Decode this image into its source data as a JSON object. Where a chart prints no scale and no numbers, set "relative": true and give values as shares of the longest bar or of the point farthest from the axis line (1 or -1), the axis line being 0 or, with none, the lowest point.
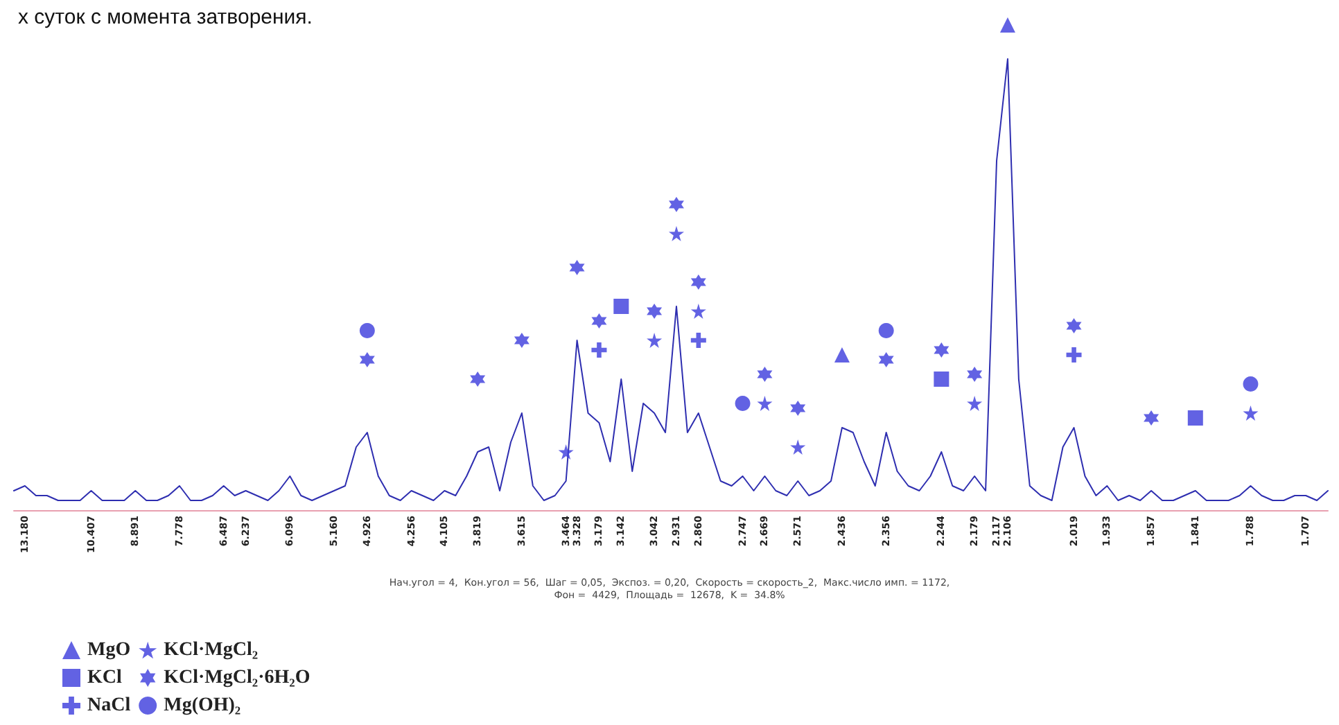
{
  "chart_data": {
    "type": "line",
    "title": "х суток с момента затворения.",
    "relative": true,
    "legend": "bottom left",
    "grid": false,
    "categories": [
      null,
      "13.180",
      null,
      null,
      null,
      null,
      null,
      "10.407",
      null,
      null,
      null,
      "8.891",
      null,
      null,
      null,
      "7.778",
      null,
      null,
      null,
      "6.487",
      null,
      "6.237",
      null,
      null,
      null,
      "6.096",
      null,
      null,
      null,
      "5.160",
      null,
      null,
      "4.926",
      null,
      null,
      null,
      "4.256",
      null,
      null,
      "4.105",
      null,
      null,
      "3.819",
      null,
      null,
      null,
      "3.615",
      null,
      null,
      null,
      "3.464",
      "3.328",
      null,
      "3.179",
      null,
      "3.142",
      null,
      null,
      "3.042",
      null,
      "2.931",
      null,
      "2.860",
      null,
      null,
      null,
      "2.747",
      null,
      "2.669",
      null,
      null,
      "2.571",
      null,
      null,
      null,
      "2.436",
      null,
      null,
      null,
      "2.356",
      null,
      null,
      null,
      null,
      "2.244",
      null,
      null,
      "2.179",
      null,
      "2.117",
      "2.106",
      null,
      null,
      null,
      null,
      null,
      "2.019",
      null,
      null,
      "1.933",
      null,
      null,
      null,
      "1.857",
      null,
      null,
      null,
      "1.841",
      null,
      null,
      null,
      null,
      "1.788",
      null,
      null,
      null,
      null,
      "1.707",
      null,
      null
    ],
    "annotations": [
      "Нач.угол = 4,  Кон.угол = 56,  Шаг = 0,05,  Экспоз. = 0,20,  Скорость = скорость_2,  Макс.число имп. = 1172,",
      "Фон =  4429,  Площадь =  12678,  K =  34.8%"
    ],
    "series": [
      {
        "color": "#2e2eb0",
        "marker": "none",
        "values": [
          0.04,
          0.05,
          0.03,
          0.03,
          0.02,
          0.02,
          0.02,
          0.04,
          0.02,
          0.02,
          0.02,
          0.04,
          0.02,
          0.02,
          0.03,
          0.05,
          0.02,
          0.02,
          0.03,
          0.05,
          0.03,
          0.04,
          0.03,
          0.02,
          0.04,
          0.07,
          0.03,
          0.02,
          0.03,
          0.04,
          0.05,
          0.13,
          0.16,
          0.07,
          0.03,
          0.02,
          0.04,
          0.03,
          0.02,
          0.04,
          0.03,
          0.07,
          0.12,
          0.13,
          0.04,
          0.14,
          0.2,
          0.05,
          0.02,
          0.03,
          0.06,
          0.35,
          0.2,
          0.18,
          0.1,
          0.27,
          0.08,
          0.22,
          0.2,
          0.16,
          0.42,
          0.16,
          0.2,
          0.13,
          0.06,
          0.05,
          0.07,
          0.04,
          0.07,
          0.04,
          0.03,
          0.06,
          0.03,
          0.04,
          0.06,
          0.17,
          0.16,
          0.1,
          0.05,
          0.16,
          0.08,
          0.05,
          0.04,
          0.07,
          0.12,
          0.05,
          0.04,
          0.07,
          0.04,
          0.72,
          0.93,
          0.27,
          0.05,
          0.03,
          0.02,
          0.13,
          0.17,
          0.07,
          0.03,
          0.05,
          0.02,
          0.03,
          0.02,
          0.04,
          0.02,
          0.02,
          0.03,
          0.04,
          0.02,
          0.02,
          0.02,
          0.03,
          0.05,
          0.03,
          0.02,
          0.02,
          0.03,
          0.03,
          0.02,
          0.04
        ]
      },
      {
        "type": "scatter",
        "name": "MgO",
        "color": "#3b3bdc",
        "marker": "triangle",
        "x": [
          "2.436",
          "2.106"
        ],
        "values": [
          0.32,
          1.0
        ]
      },
      {
        "type": "scatter",
        "name": "KCl",
        "color": "#3b3bdc",
        "marker": "square",
        "x": [
          "3.142",
          "2.244",
          "1.841"
        ],
        "values": [
          0.42,
          0.27,
          0.19
        ]
      },
      {
        "type": "scatter",
        "name": "NaCl",
        "color": "#3b3bdc",
        "marker": "cross",
        "x": [
          "3.179",
          "2.860",
          "2.019"
        ],
        "values": [
          0.33,
          0.35,
          0.32
        ]
      },
      {
        "type": "scatter",
        "name": "KCl·MgCl₂",
        "color": "#3b3bdc",
        "marker": "star",
        "x": [
          "3.464",
          "3.042",
          "2.931",
          "2.860",
          "2.669",
          "2.571",
          "2.179",
          "1.788"
        ],
        "values": [
          0.12,
          0.35,
          0.57,
          0.41,
          0.22,
          0.13,
          0.22,
          0.2
        ]
      },
      {
        "type": "scatter",
        "name": "KCl·MgCl₂·6H₂O",
        "color": "#3b3bdc",
        "x": [
          "4.926",
          "3.819",
          "3.615",
          "3.328",
          "3.179",
          "3.042",
          "2.931",
          "2.860",
          "2.669",
          "2.571",
          "2.356",
          "2.244",
          "2.179",
          "2.019",
          "1.857"
        ],
        "values": [
          0.31,
          0.27,
          0.35,
          0.5,
          0.39,
          0.41,
          0.63,
          0.47,
          0.28,
          0.21,
          0.31,
          0.33,
          0.28,
          0.38,
          0.19
        ]
      },
      {
        "type": "scatter",
        "name": "Mg(OH)₂",
        "color": "#3b3bdc",
        "marker": "circle",
        "x": [
          "4.926",
          "2.747",
          "2.356",
          "1.788"
        ],
        "values": [
          0.37,
          0.22,
          0.37,
          0.26
        ]
      }
    ]
  }
}
